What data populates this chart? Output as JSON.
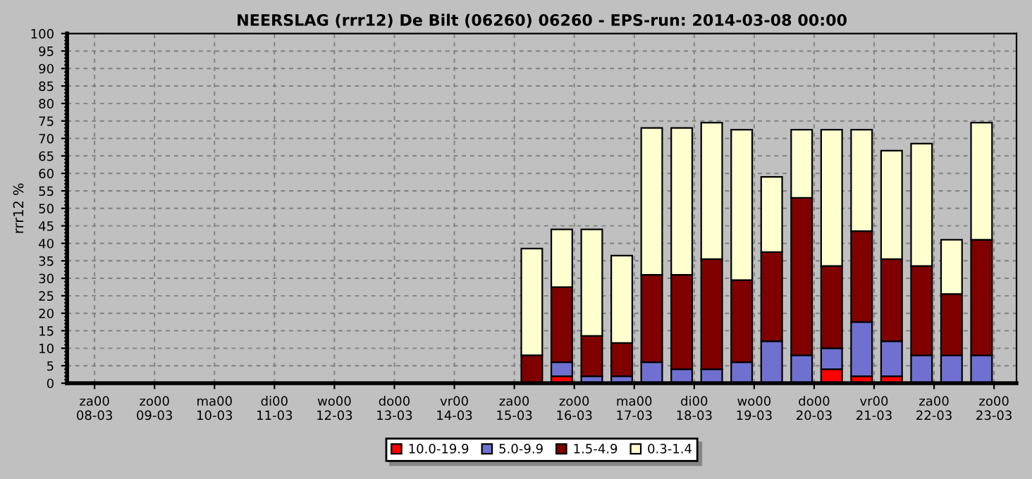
{
  "chart_data": {
    "type": "bar",
    "stacked": true,
    "title": "NEERSLAG (rrr12) De Bilt (06260) 06260 - EPS-run: 2014-03-08 00:00",
    "ylabel": "rrr12 %",
    "x": [
      "2014-03-15T07:00",
      "2014-03-15T19:00",
      "2014-03-16T07:00",
      "2014-03-16T19:00",
      "2014-03-17T07:00",
      "2014-03-17T19:00",
      "2014-03-18T07:00",
      "2014-03-18T19:00",
      "2014-03-19T07:00",
      "2014-03-19T19:00",
      "2014-03-20T07:00",
      "2014-03-20T19:00",
      "2014-03-21T07:00",
      "2014-03-21T19:00",
      "2014-03-22T07:00",
      "2014-03-22T19:00"
    ],
    "series": [
      {
        "name": "10.0-19.9",
        "color": "#ff0000",
        "values": [
          0,
          2,
          0,
          0,
          0,
          0,
          0,
          0,
          0,
          0,
          4,
          2,
          2,
          0,
          0,
          0
        ]
      },
      {
        "name": "5.0-9.9",
        "color": "#7070d0",
        "values": [
          0,
          4,
          2,
          2,
          6,
          4,
          4,
          6,
          12,
          8,
          6,
          15.5,
          10,
          8,
          8,
          8
        ]
      },
      {
        "name": "1.5-4.9",
        "color": "#800000",
        "values": [
          8,
          21.5,
          11.5,
          9.5,
          25,
          27,
          31.5,
          23.5,
          25.5,
          45,
          23.5,
          26,
          23.5,
          25.5,
          17.5,
          33
        ]
      },
      {
        "name": "0.3-1.4",
        "color": "#ffffd0",
        "values": [
          30.5,
          16.5,
          30.5,
          25,
          42,
          42,
          39,
          43,
          21.5,
          19.5,
          39,
          29,
          31,
          35,
          15.5,
          33.5
        ]
      }
    ],
    "ylim": [
      0,
      100
    ],
    "yticks": [
      0,
      5,
      10,
      15,
      20,
      25,
      30,
      35,
      40,
      45,
      50,
      55,
      60,
      65,
      70,
      75,
      80,
      85,
      90,
      95,
      100
    ],
    "xlim": [
      "2014-03-07T13:00",
      "2014-03-23T09:00"
    ],
    "xticks": [
      {
        "value": "2014-03-08",
        "label": "za00\n08-03"
      },
      {
        "value": "2014-03-09",
        "label": "zo00\n09-03"
      },
      {
        "value": "2014-03-10",
        "label": "ma00\n10-03"
      },
      {
        "value": "2014-03-11",
        "label": "di00\n11-03"
      },
      {
        "value": "2014-03-12",
        "label": "wo00\n12-03"
      },
      {
        "value": "2014-03-13",
        "label": "do00\n13-03"
      },
      {
        "value": "2014-03-14",
        "label": "vr00\n14-03"
      },
      {
        "value": "2014-03-15",
        "label": "za00\n15-03"
      },
      {
        "value": "2014-03-16",
        "label": "zo00\n16-03"
      },
      {
        "value": "2014-03-17",
        "label": "ma00\n17-03"
      },
      {
        "value": "2014-03-18",
        "label": "di00\n18-03"
      },
      {
        "value": "2014-03-19",
        "label": "wo00\n19-03"
      },
      {
        "value": "2014-03-20",
        "label": "do00\n20-03"
      },
      {
        "value": "2014-03-21",
        "label": "vr00\n21-03"
      },
      {
        "value": "2014-03-22",
        "label": "za00\n22-03"
      },
      {
        "value": "2014-03-23",
        "label": "zo00\n23-03"
      }
    ],
    "grid": true,
    "legend": "bottom"
  }
}
